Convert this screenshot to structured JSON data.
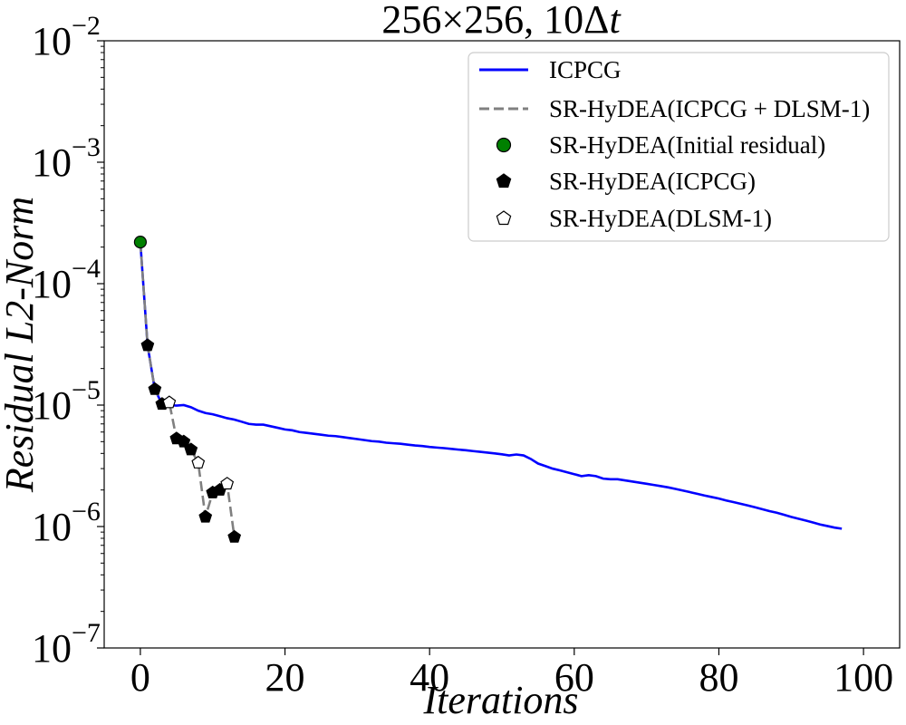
{
  "chart_data": {
    "type": "line",
    "title": {
      "base": "256",
      "times": "×",
      "base2": "256",
      "sep": ", 10",
      "delta": "Δ",
      "t": "t"
    },
    "xlabel": "Iterations",
    "ylabel": "Residual L2-Norm",
    "xlim": [
      -5,
      105
    ],
    "ylim_exp": [
      -7,
      -2
    ],
    "yscale": "log",
    "x_ticks": [
      {
        "value": 0,
        "label": "0"
      },
      {
        "value": 20,
        "label": "20"
      },
      {
        "value": 40,
        "label": "40"
      },
      {
        "value": 60,
        "label": "60"
      },
      {
        "value": 80,
        "label": "80"
      },
      {
        "value": 100,
        "label": "100"
      }
    ],
    "y_ticks": [
      {
        "exp": -7,
        "base": "10",
        "sup": "−7"
      },
      {
        "exp": -6,
        "base": "10",
        "sup": "−6"
      },
      {
        "exp": -5,
        "base": "10",
        "sup": "−5"
      },
      {
        "exp": -4,
        "base": "10",
        "sup": "−4"
      },
      {
        "exp": -3,
        "base": "10",
        "sup": "−3"
      },
      {
        "exp": -2,
        "base": "10",
        "sup": "−2"
      }
    ],
    "legend_position": "top-right",
    "legend": [
      {
        "key": "icpcg",
        "label": "ICPCG"
      },
      {
        "key": "hybrid",
        "label": "SR-HyDEA(ICPCG + DLSM-1)"
      },
      {
        "key": "initial",
        "label": "SR-HyDEA(Initial residual)"
      },
      {
        "key": "icpcg_pts",
        "label": "SR-HyDEA(ICPCG)"
      },
      {
        "key": "dlsm_pts",
        "label": "SR-HyDEA(DLSM-1)"
      }
    ],
    "colors": {
      "icpcg": "#0000ff",
      "hybrid": "#808080",
      "initial": "#008000",
      "icpcg_pts": "#000000",
      "dlsm_pts": "#ffffff"
    },
    "series": [
      {
        "name": "ICPCG",
        "x": [
          0,
          1,
          2,
          3,
          4,
          5,
          6,
          7,
          8,
          9,
          10,
          11,
          12,
          13,
          14,
          15,
          16,
          17,
          18,
          19,
          20,
          21,
          22,
          23,
          24,
          25,
          26,
          27,
          28,
          29,
          30,
          31,
          32,
          33,
          34,
          35,
          36,
          37,
          38,
          39,
          40,
          41,
          42,
          43,
          44,
          45,
          46,
          47,
          48,
          49,
          50,
          51,
          52,
          53,
          54,
          55,
          56,
          57,
          58,
          59,
          60,
          61,
          62,
          63,
          64,
          65,
          66,
          67,
          68,
          69,
          70,
          71,
          72,
          73,
          74,
          75,
          76,
          77,
          78,
          79,
          80,
          81,
          82,
          83,
          84,
          85,
          86,
          87,
          88,
          89,
          90,
          91,
          92,
          93,
          94,
          95,
          96,
          97
        ],
        "y": [
          0.00022,
          3.1e-05,
          1.35e-05,
          1.02e-05,
          1e-05,
          9.9e-06,
          1e-05,
          9.6e-06,
          9e-06,
          8.6e-06,
          8.4e-06,
          8.1e-06,
          7.8e-06,
          7.6e-06,
          7.3e-06,
          7e-06,
          6.9e-06,
          6.9e-06,
          6.7e-06,
          6.5e-06,
          6.3e-06,
          6.2e-06,
          6e-06,
          5.9e-06,
          5.8e-06,
          5.7e-06,
          5.6e-06,
          5.55e-06,
          5.45e-06,
          5.35e-06,
          5.25e-06,
          5.15e-06,
          5.05e-06,
          5e-06,
          4.9e-06,
          4.85e-06,
          4.8e-06,
          4.72e-06,
          4.65e-06,
          4.6e-06,
          4.52e-06,
          4.47e-06,
          4.42e-06,
          4.36e-06,
          4.3e-06,
          4.25e-06,
          4.18e-06,
          4.12e-06,
          4.06e-06,
          4e-06,
          3.93e-06,
          3.85e-06,
          3.92e-06,
          3.85e-06,
          3.6e-06,
          3.3e-06,
          3.15e-06,
          3e-06,
          2.9e-06,
          2.8e-06,
          2.7e-06,
          2.6e-06,
          2.65e-06,
          2.6e-06,
          2.48e-06,
          2.45e-06,
          2.45e-06,
          2.4e-06,
          2.35e-06,
          2.3e-06,
          2.25e-06,
          2.2e-06,
          2.15e-06,
          2.1e-06,
          2.04e-06,
          1.98e-06,
          1.92e-06,
          1.86e-06,
          1.8e-06,
          1.75e-06,
          1.7e-06,
          1.64e-06,
          1.59e-06,
          1.54e-06,
          1.49e-06,
          1.44e-06,
          1.39e-06,
          1.34e-06,
          1.3e-06,
          1.25e-06,
          1.2e-06,
          1.16e-06,
          1.12e-06,
          1.08e-06,
          1.04e-06,
          1.01e-06,
          9.8e-07,
          9.6e-07
        ]
      },
      {
        "name": "SR-HyDEA(ICPCG + DLSM-1)",
        "x": [
          0,
          1,
          2,
          3,
          4,
          5,
          6,
          7,
          8,
          9,
          10,
          11,
          12,
          13
        ],
        "y": [
          0.00022,
          3.1e-05,
          1.35e-05,
          1.02e-05,
          1.05e-05,
          5.3e-06,
          5e-06,
          4.3e-06,
          3.35e-06,
          1.2e-06,
          1.9e-06,
          2e-06,
          2.25e-06,
          8.2e-07
        ]
      },
      {
        "name": "SR-HyDEA(Initial residual)",
        "x": [
          0
        ],
        "y": [
          0.00022
        ]
      },
      {
        "name": "SR-HyDEA(ICPCG)",
        "x": [
          1,
          2,
          3,
          5,
          6,
          7,
          9,
          10,
          11,
          13
        ],
        "y": [
          3.1e-05,
          1.35e-05,
          1.02e-05,
          5.3e-06,
          5e-06,
          4.3e-06,
          1.2e-06,
          1.9e-06,
          2e-06,
          8.2e-07
        ]
      },
      {
        "name": "SR-HyDEA(DLSM-1)",
        "x": [
          4,
          8,
          12
        ],
        "y": [
          1.05e-05,
          3.35e-06,
          2.25e-06
        ]
      }
    ]
  }
}
